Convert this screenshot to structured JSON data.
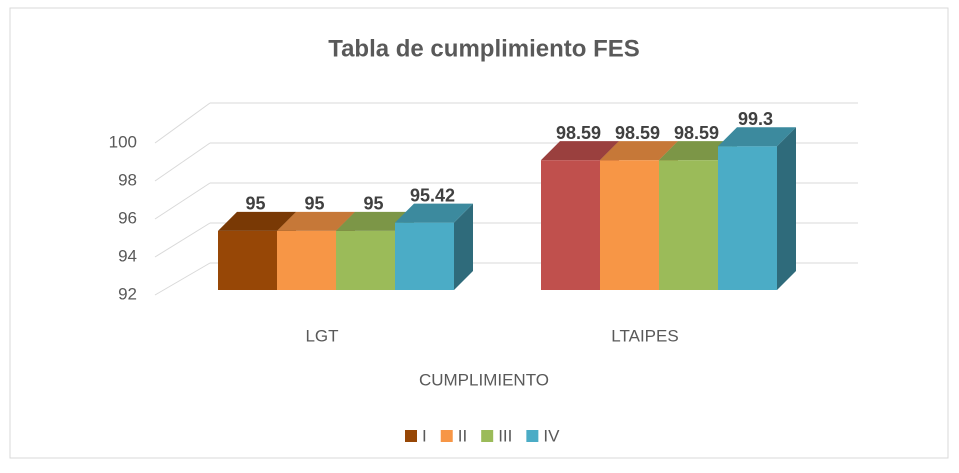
{
  "chart_data": {
    "type": "bar3d",
    "title": "Tabla de cumplimiento FES",
    "x_label": "CUMPLIMIENTO",
    "categories": [
      "LGT",
      "LTAIPES"
    ],
    "series": [
      {
        "name": "I",
        "color": "#974706",
        "colors": [
          "#974706",
          "#c0504d"
        ],
        "values": [
          95,
          98.59
        ]
      },
      {
        "name": "II",
        "color": "#f79646",
        "values": [
          95,
          98.59
        ]
      },
      {
        "name": "III",
        "color": "#9bbb59",
        "values": [
          95,
          98.59
        ]
      },
      {
        "name": "IV",
        "color": "#4bacc6",
        "values": [
          95.42,
          99.3
        ]
      }
    ],
    "ylim": [
      92,
      100
    ],
    "yticks": [
      92,
      94,
      96,
      98,
      100
    ],
    "grid": true,
    "legend": "bottom"
  }
}
